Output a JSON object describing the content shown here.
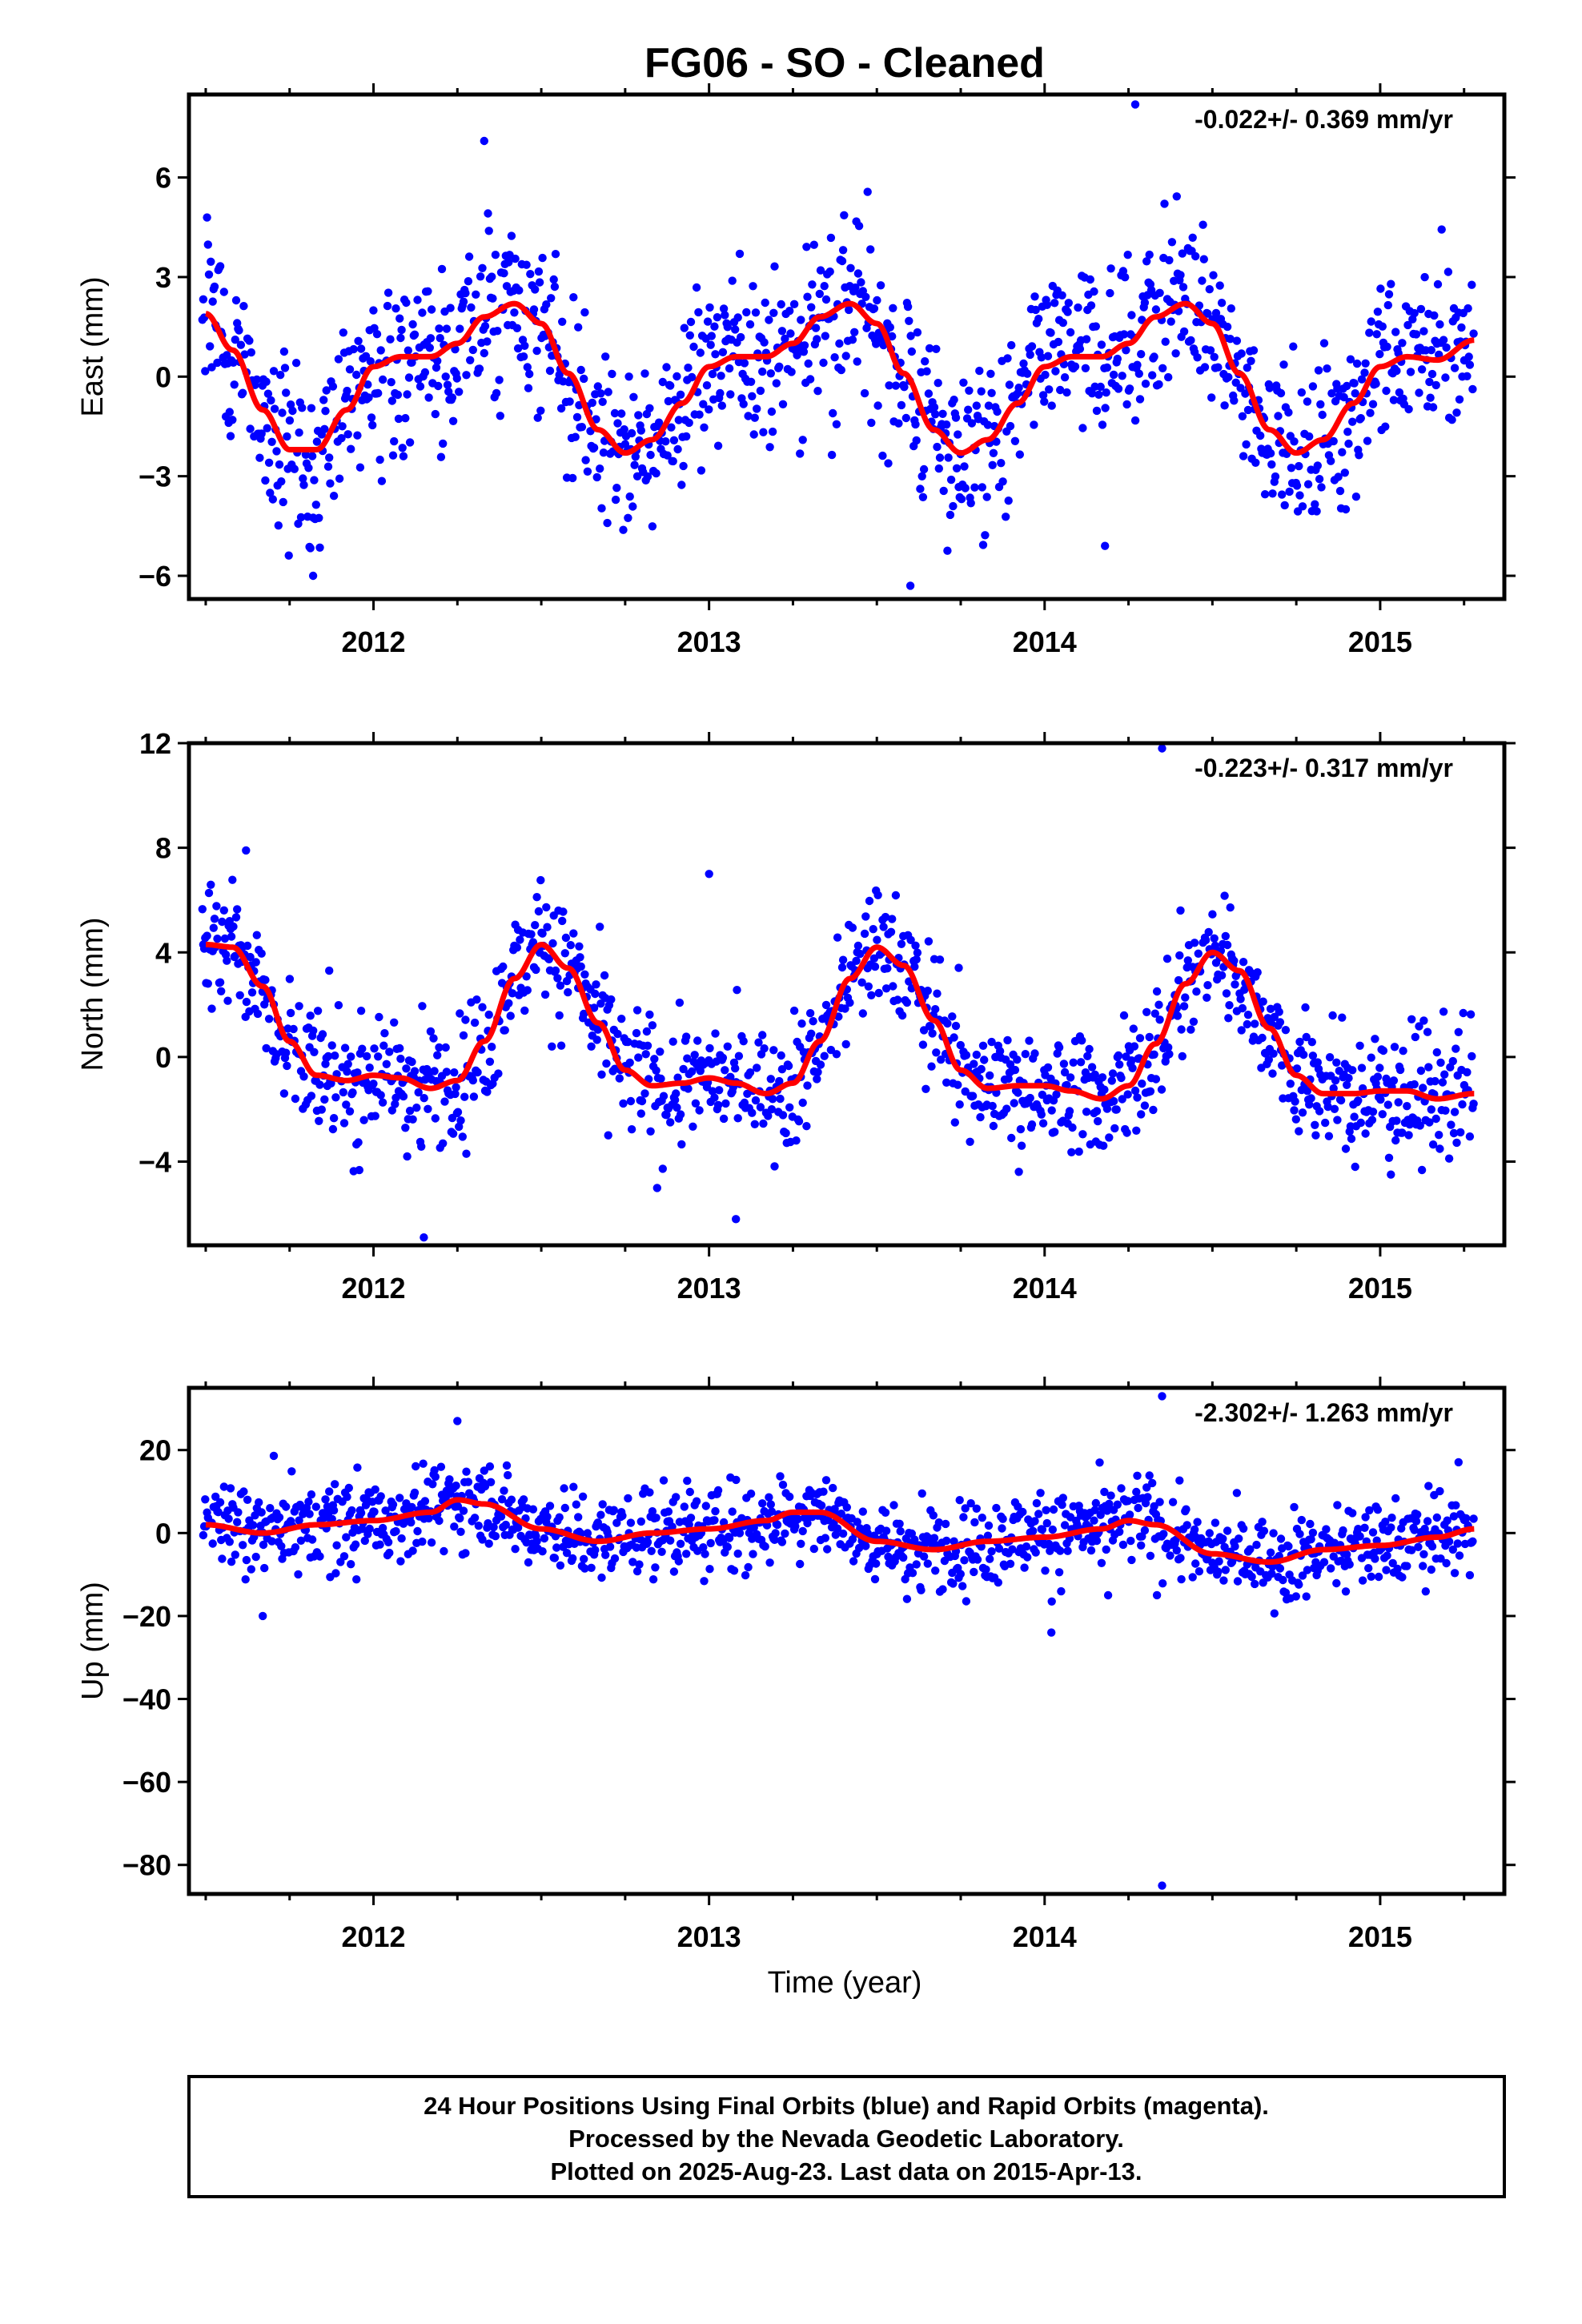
{
  "chart_data": {
    "title": "FG06  - SO - Cleaned",
    "xlabel": "Time (year)",
    "xlim": [
      2011.45,
      2015.37
    ],
    "x_ticks": [
      2012,
      2013,
      2014,
      2015
    ],
    "x_tick_labels": [
      "2012",
      "2013",
      "2014",
      "2015"
    ],
    "colors": {
      "final_orbits": "#0000ff",
      "rapid_orbits": "#ff00ff",
      "model": "#ff0000"
    },
    "footer_lines": [
      "24 Hour Positions Using Final Orbits (blue) and Rapid Orbits (magenta).",
      "Processed by the Nevada Geodetic Laboratory.",
      "Plotted on 2025-Aug-23. Last data on 2015-Apr-13."
    ],
    "panels": [
      {
        "type": "scatter",
        "ylabel": "East (mm)",
        "ylim": [
          -6.7,
          8.5
        ],
        "y_ticks": [
          -6,
          -3,
          0,
          3,
          6
        ],
        "y_tick_labels": [
          "−6",
          "−3",
          "0",
          "3",
          "6"
        ],
        "rate_label": "-0.022+/- 0.369 mm/yr",
        "series": [
          {
            "x": [
              2011.5,
              2011.58,
              2011.67,
              2011.75,
              2011.83,
              2011.92,
              2012.0,
              2012.08,
              2012.17,
              2012.25,
              2012.33,
              2012.42,
              2012.5,
              2012.58,
              2012.67,
              2012.75,
              2012.83,
              2012.92,
              2013.0,
              2013.08,
              2013.17,
              2013.25,
              2013.33,
              2013.42,
              2013.5,
              2013.58,
              2013.67,
              2013.75,
              2013.83,
              2013.92,
              2014.0,
              2014.08,
              2014.17,
              2014.25,
              2014.33,
              2014.42,
              2014.5,
              2014.58,
              2014.67,
              2014.75,
              2014.83,
              2014.92,
              2015.0,
              2015.08,
              2015.17,
              2015.28
            ],
            "y": [
              1.9,
              0.8,
              -1.0,
              -2.2,
              -2.2,
              -1.0,
              0.3,
              0.6,
              0.6,
              1.0,
              1.8,
              2.2,
              1.6,
              0.1,
              -1.6,
              -2.3,
              -1.9,
              -0.8,
              0.3,
              0.6,
              0.6,
              1.0,
              1.8,
              2.2,
              1.6,
              0.1,
              -1.6,
              -2.3,
              -1.9,
              -0.8,
              0.3,
              0.6,
              0.6,
              1.0,
              1.8,
              2.2,
              1.6,
              0.1,
              -1.6,
              -2.3,
              -1.9,
              -0.8,
              0.3,
              0.6,
              0.5,
              1.1
            ]
          }
        ]
      },
      {
        "type": "scatter",
        "ylabel": "North (mm)",
        "ylim": [
          -7.2,
          12.0
        ],
        "y_ticks": [
          -4,
          0,
          4,
          8,
          12
        ],
        "y_tick_labels": [
          "−4",
          "0",
          "4",
          "8",
          "12"
        ],
        "rate_label": "-0.223+/- 0.317 mm/yr",
        "series": [
          {
            "x": [
              2011.5,
              2011.58,
              2011.67,
              2011.75,
              2011.83,
              2011.92,
              2012.0,
              2012.08,
              2012.17,
              2012.25,
              2012.33,
              2012.42,
              2012.5,
              2012.58,
              2012.67,
              2012.75,
              2012.83,
              2012.92,
              2013.0,
              2013.08,
              2013.17,
              2013.25,
              2013.33,
              2013.42,
              2013.5,
              2013.58,
              2013.67,
              2013.75,
              2013.83,
              2013.92,
              2014.0,
              2014.08,
              2014.17,
              2014.25,
              2014.33,
              2014.42,
              2014.5,
              2014.58,
              2014.67,
              2014.75,
              2014.83,
              2014.92,
              2015.0,
              2015.08,
              2015.17,
              2015.28
            ],
            "y": [
              4.3,
              4.2,
              2.7,
              0.6,
              -0.7,
              -0.9,
              -0.7,
              -0.8,
              -1.2,
              -0.9,
              0.6,
              3.0,
              4.3,
              3.4,
              1.3,
              -0.5,
              -1.1,
              -1.0,
              -0.8,
              -1.0,
              -1.4,
              -1.0,
              0.6,
              3.0,
              4.2,
              3.5,
              1.4,
              -0.5,
              -1.2,
              -1.1,
              -1.1,
              -1.3,
              -1.6,
              -1.1,
              0.5,
              2.8,
              4.0,
              3.3,
              1.1,
              -0.7,
              -1.4,
              -1.4,
              -1.3,
              -1.3,
              -1.6,
              -1.4
            ]
          }
        ]
      },
      {
        "type": "scatter",
        "ylabel": "Up (mm)",
        "ylim": [
          -87,
          35
        ],
        "y_ticks": [
          -80,
          -60,
          -40,
          -20,
          0,
          20
        ],
        "y_tick_labels": [
          "−80",
          "−60",
          "−40",
          "−20",
          "0",
          "20"
        ],
        "rate_label": "-2.302+/- 1.263 mm/yr",
        "series": [
          {
            "x": [
              2011.5,
              2011.67,
              2011.83,
              2012.0,
              2012.17,
              2012.25,
              2012.33,
              2012.5,
              2012.67,
              2012.83,
              2013.0,
              2013.17,
              2013.25,
              2013.33,
              2013.5,
              2013.67,
              2013.83,
              2014.0,
              2014.17,
              2014.25,
              2014.33,
              2014.5,
              2014.67,
              2014.83,
              2015.0,
              2015.17,
              2015.28
            ],
            "y": [
              2,
              0,
              2,
              3,
              5,
              8,
              7,
              1,
              -2,
              0,
              1,
              3,
              5,
              5,
              -2,
              -4,
              -2,
              -1,
              1,
              3,
              2,
              -5,
              -7,
              -4,
              -3,
              -1,
              1
            ]
          }
        ]
      }
    ]
  }
}
